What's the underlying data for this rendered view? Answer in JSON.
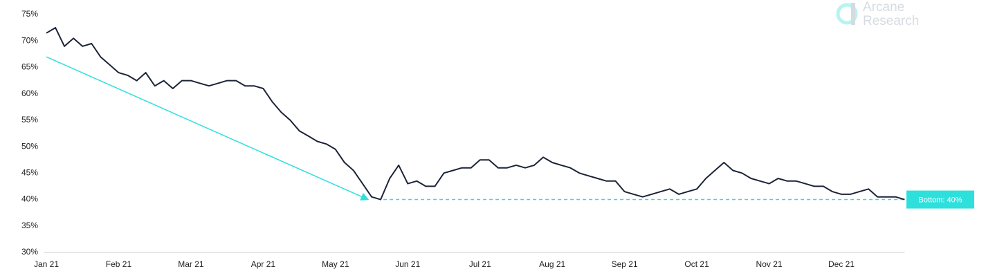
{
  "chart_data": {
    "type": "line",
    "categories": [
      "Jan 21",
      null,
      null,
      null,
      null,
      null,
      null,
      null,
      "Feb 21",
      null,
      null,
      null,
      null,
      null,
      null,
      null,
      "Mar 21",
      null,
      null,
      null,
      null,
      null,
      null,
      null,
      "Apr 21",
      null,
      null,
      null,
      null,
      null,
      null,
      null,
      "May 21",
      null,
      null,
      null,
      null,
      null,
      null,
      null,
      "Jun 21",
      null,
      null,
      null,
      null,
      null,
      null,
      null,
      "Jul 21",
      null,
      null,
      null,
      null,
      null,
      null,
      null,
      "Aug 21",
      null,
      null,
      null,
      null,
      null,
      null,
      null,
      "Sep 21",
      null,
      null,
      null,
      null,
      null,
      null,
      null,
      "Oct 21",
      null,
      null,
      null,
      null,
      null,
      null,
      null,
      "Nov 21",
      null,
      null,
      null,
      null,
      null,
      null,
      null,
      "Dec 21",
      null,
      null,
      null,
      null,
      null,
      null,
      null
    ],
    "series": [
      {
        "color": "#1b2338",
        "values": [
          71.5,
          72.5,
          69,
          70.5,
          69,
          69.5,
          67,
          65.5,
          64,
          63.5,
          62.5,
          64,
          61.5,
          62.5,
          61,
          62.5,
          62.5,
          62,
          61.5,
          62,
          62.5,
          62.5,
          61.5,
          61.5,
          61,
          58.5,
          56.5,
          55,
          53,
          52,
          51,
          50.5,
          49.5,
          47,
          45.5,
          43,
          40.5,
          40,
          44,
          46.5,
          43,
          43.5,
          42.5,
          42.5,
          45,
          45.5,
          46,
          46,
          47.5,
          47.5,
          46,
          46,
          46.5,
          46,
          46.5,
          48,
          47,
          46.5,
          46,
          45,
          44.5,
          44,
          43.5,
          43.5,
          41.5,
          41,
          40.5,
          41,
          41.5,
          42,
          41,
          41.5,
          42,
          44,
          45.5,
          47,
          45.5,
          45,
          44,
          43.5,
          43,
          44,
          43.5,
          43.5,
          43,
          42.5,
          42.5,
          41.5,
          41,
          41,
          41.5,
          42,
          40.5,
          40.5,
          40.5,
          40
        ]
      }
    ],
    "ylim": [
      30,
      75
    ],
    "yticks": [
      {
        "value": 30,
        "label": "30%"
      },
      {
        "value": 35,
        "label": "35%"
      },
      {
        "value": 40,
        "label": "40%"
      },
      {
        "value": 45,
        "label": "45%"
      },
      {
        "value": 50,
        "label": "50%"
      },
      {
        "value": 55,
        "label": "55%"
      },
      {
        "value": 60,
        "label": "60%"
      },
      {
        "value": 65,
        "label": "65%"
      },
      {
        "value": 70,
        "label": "70%"
      },
      {
        "value": 75,
        "label": "75%"
      }
    ],
    "grid": false,
    "reference_line": {
      "value": 40,
      "label": "Bottom: 40%",
      "color": "#2ee0dc"
    },
    "trend_arrow": {
      "from": 67,
      "to": 40,
      "color": "#2ee0dc"
    },
    "logo": [
      "Arcane",
      "Research"
    ]
  }
}
